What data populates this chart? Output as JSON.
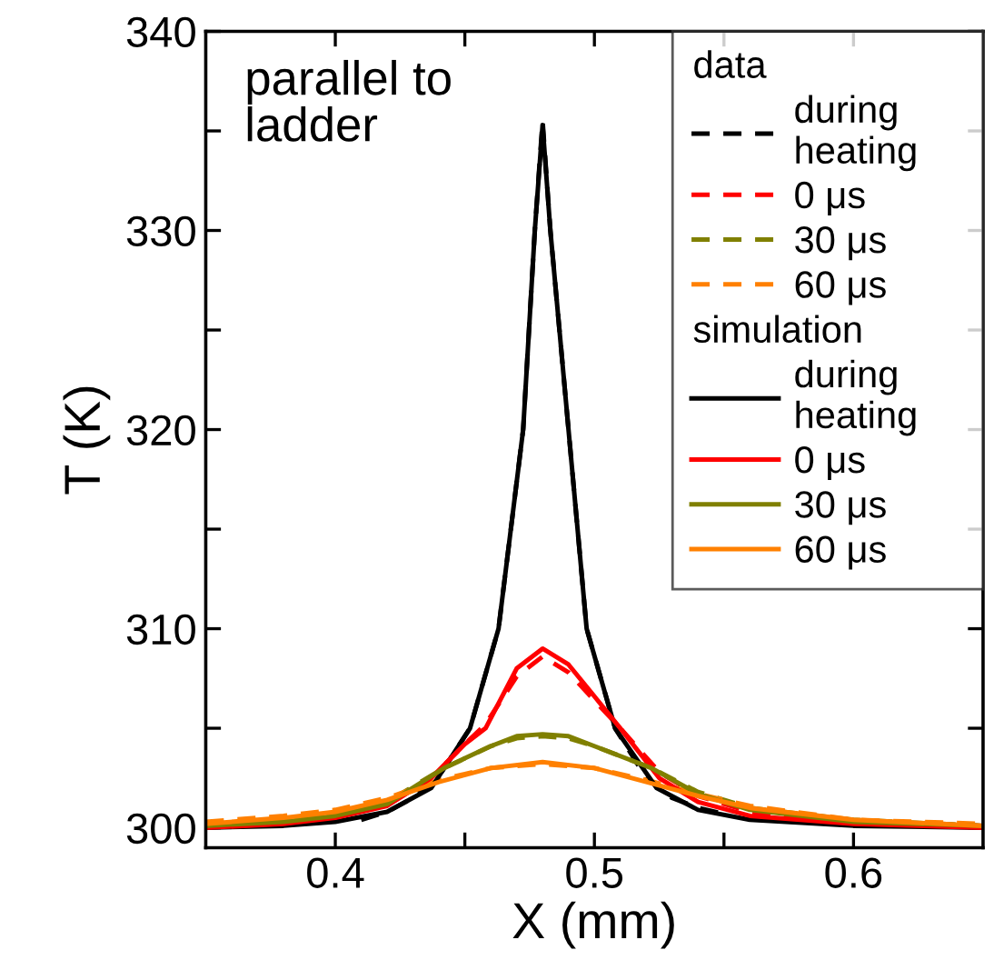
{
  "chart_data": {
    "type": "line",
    "xlabel": "X (mm)",
    "ylabel": "T (K)",
    "annotations": [
      "parallel to\nladder",
      "data",
      "simulation"
    ],
    "xlim": [
      0.35,
      0.65
    ],
    "ylim": [
      299,
      340
    ],
    "xticks": [
      0.4,
      {
        "value": 0.45,
        "label": null
      },
      0.5,
      {
        "value": 0.55,
        "label": null
      },
      0.6
    ],
    "yticks": [
      300,
      {
        "value": 305,
        "label": null
      },
      310,
      {
        "value": 315,
        "label": null
      },
      320,
      {
        "value": 325,
        "label": null
      },
      330,
      {
        "value": 335,
        "label": null
      },
      340
    ],
    "grid": false,
    "legend": "top right",
    "marker": "none",
    "series": [
      {
        "name": "during\nheating",
        "color": "#000000",
        "line_style": "dashed",
        "x": [
          0.41,
          0.42,
          0.43,
          0.44,
          0.452,
          0.463,
          0.4725,
          0.477,
          0.48,
          0.483,
          0.49,
          0.497,
          0.508,
          0.52,
          0.53,
          0.54,
          0.55
        ],
        "values": [
          300.4,
          300.8,
          301.5,
          302.6,
          305,
          310,
          320,
          330,
          335.5,
          330,
          320,
          310,
          305,
          302.5,
          301.5,
          301,
          300.7
        ]
      },
      {
        "name": "0 μs",
        "color": "#ff0000",
        "line_style": "dashed",
        "x": [
          0.35,
          0.38,
          0.4,
          0.42,
          0.437,
          0.45,
          0.458,
          0.47,
          0.48,
          0.49,
          0.5,
          0.51,
          0.525,
          0.54,
          0.56,
          0.6,
          0.65
        ],
        "values": [
          300.1,
          300.3,
          300.6,
          301.2,
          302.5,
          304.2,
          305.2,
          307.6,
          308.6,
          307.8,
          306.4,
          305.0,
          302.8,
          301.6,
          300.8,
          300.3,
          300.1
        ]
      },
      {
        "name": "30 μs",
        "color": "#808000",
        "line_style": "dashed",
        "x": [
          0.35,
          0.38,
          0.4,
          0.42,
          0.442,
          0.46,
          0.47,
          0.48,
          0.49,
          0.5,
          0.522,
          0.54,
          0.56,
          0.6,
          0.65
        ],
        "values": [
          300.2,
          300.4,
          300.7,
          301.3,
          303.0,
          304.1,
          304.5,
          304.6,
          304.5,
          304.1,
          303.0,
          301.8,
          301.0,
          300.4,
          300.1
        ]
      },
      {
        "name": "60 μs",
        "color": "#ff8000",
        "line_style": "dashed",
        "x": [
          0.35,
          0.38,
          0.4,
          0.42,
          0.44,
          0.46,
          0.48,
          0.5,
          0.52,
          0.54,
          0.56,
          0.6,
          0.65
        ],
        "values": [
          300.3,
          300.6,
          300.9,
          301.5,
          302.4,
          303.0,
          303.2,
          303.0,
          302.4,
          301.7,
          301.1,
          300.4,
          300.2
        ]
      },
      {
        "name": "during\nheating",
        "color": "#000000",
        "line_style": "solid",
        "x": [
          0.35,
          0.38,
          0.4,
          0.42,
          0.437,
          0.452,
          0.463,
          0.4725,
          0.477,
          0.48,
          0.483,
          0.49,
          0.497,
          0.508,
          0.524,
          0.54,
          0.56,
          0.6,
          0.65
        ],
        "values": [
          300.0,
          300.1,
          300.3,
          300.8,
          302,
          305,
          310,
          320,
          330,
          335.3,
          330,
          320,
          310,
          305,
          302,
          300.9,
          300.4,
          300.1,
          300.0
        ]
      },
      {
        "name": "0 μs",
        "color": "#ff0000",
        "line_style": "solid",
        "x": [
          0.35,
          0.38,
          0.4,
          0.42,
          0.437,
          0.45,
          0.458,
          0.47,
          0.48,
          0.49,
          0.5,
          0.51,
          0.525,
          0.54,
          0.56,
          0.6,
          0.65
        ],
        "values": [
          300.0,
          300.2,
          300.5,
          301.1,
          302.5,
          304.2,
          305.0,
          308.0,
          309.0,
          308.2,
          306.6,
          305.0,
          302.5,
          301.3,
          300.6,
          300.2,
          300.0
        ]
      },
      {
        "name": "30 μs",
        "color": "#808000",
        "line_style": "solid",
        "x": [
          0.35,
          0.38,
          0.4,
          0.42,
          0.442,
          0.46,
          0.47,
          0.48,
          0.49,
          0.5,
          0.522,
          0.54,
          0.56,
          0.6,
          0.65
        ],
        "values": [
          300.1,
          300.3,
          300.6,
          301.2,
          303.0,
          304.1,
          304.6,
          304.7,
          304.6,
          304.1,
          303.0,
          301.7,
          300.9,
          300.3,
          300.1
        ]
      },
      {
        "name": "60 μs",
        "color": "#ff8000",
        "line_style": "solid",
        "x": [
          0.35,
          0.38,
          0.4,
          0.42,
          0.44,
          0.46,
          0.48,
          0.5,
          0.52,
          0.54,
          0.56,
          0.6,
          0.65
        ],
        "values": [
          300.2,
          300.5,
          300.8,
          301.4,
          302.3,
          303.0,
          303.3,
          303.0,
          302.3,
          301.6,
          301.0,
          300.4,
          300.1
        ]
      }
    ]
  }
}
